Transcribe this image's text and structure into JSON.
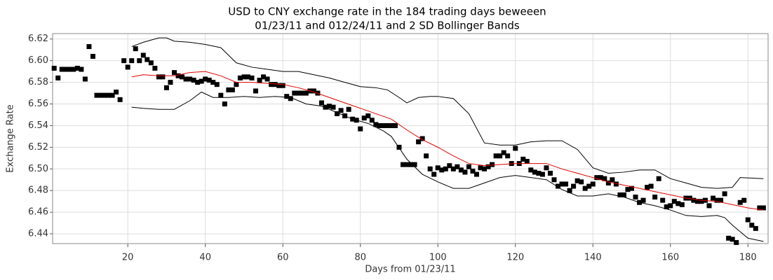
{
  "chart_data": {
    "type": "scatter",
    "title": [
      "USD to CNY exchange rate in the 184 trading days beweeen",
      "01/23/11 and 012/24/11 and 2 SD Bollinger Bands"
    ],
    "x_label": "Days from 01/23/11",
    "y_label": "Exchange Rate",
    "xlim": [
      0.6,
      185.2
    ],
    "ylim": [
      6.431,
      6.625
    ],
    "xticks": [
      20,
      40,
      60,
      80,
      100,
      120,
      140,
      160,
      180
    ],
    "yticks": [
      6.44,
      6.46,
      6.48,
      {
        "value": 6.5,
        "label": "6.50"
      },
      6.52,
      6.54,
      6.56,
      6.58,
      {
        "value": 6.6,
        "label": "6.60"
      },
      6.62
    ],
    "grid": true,
    "x": [
      1,
      2,
      3,
      4,
      5,
      6,
      7,
      8,
      9,
      10,
      11,
      12,
      13,
      14,
      15,
      16,
      17,
      18,
      19,
      20,
      21,
      22,
      23,
      24,
      25,
      26,
      27,
      28,
      29,
      30,
      31,
      32,
      33,
      34,
      35,
      36,
      37,
      38,
      39,
      40,
      41,
      42,
      43,
      44,
      45,
      46,
      47,
      48,
      49,
      50,
      51,
      52,
      53,
      54,
      55,
      56,
      57,
      58,
      59,
      60,
      61,
      62,
      63,
      64,
      65,
      66,
      67,
      68,
      69,
      70,
      71,
      72,
      73,
      74,
      75,
      76,
      77,
      78,
      79,
      80,
      81,
      82,
      83,
      84,
      85,
      86,
      87,
      88,
      89,
      90,
      91,
      92,
      93,
      94,
      95,
      96,
      97,
      98,
      99,
      100,
      101,
      102,
      103,
      104,
      105,
      106,
      107,
      108,
      109,
      110,
      111,
      112,
      113,
      114,
      115,
      116,
      117,
      118,
      119,
      120,
      121,
      122,
      123,
      124,
      125,
      126,
      127,
      128,
      129,
      130,
      131,
      132,
      133,
      134,
      135,
      136,
      137,
      138,
      139,
      140,
      141,
      142,
      143,
      144,
      145,
      146,
      147,
      148,
      149,
      150,
      151,
      152,
      153,
      154,
      155,
      156,
      157,
      158,
      159,
      160,
      161,
      162,
      163,
      164,
      165,
      166,
      167,
      168,
      169,
      170,
      171,
      172,
      173,
      174,
      175,
      176,
      177,
      178,
      179,
      180,
      181,
      182,
      183,
      184
    ],
    "series": [
      {
        "type": "scatter",
        "color": "#000000",
        "values": [
          6.593,
          6.584,
          6.592,
          6.592,
          6.592,
          6.592,
          6.593,
          6.592,
          6.583,
          6.613,
          6.604,
          6.568,
          6.568,
          6.568,
          6.568,
          6.568,
          6.571,
          6.564,
          6.6,
          6.594,
          6.6,
          6.611,
          6.6,
          6.605,
          6.601,
          6.598,
          6.593,
          6.585,
          6.585,
          6.575,
          6.58,
          6.589,
          6.586,
          6.585,
          6.583,
          6.583,
          6.582,
          6.58,
          6.581,
          6.583,
          6.582,
          6.58,
          6.578,
          6.568,
          6.56,
          6.573,
          6.573,
          6.578,
          6.584,
          6.585,
          6.585,
          6.584,
          6.572,
          6.582,
          6.585,
          6.583,
          6.578,
          6.578,
          6.577,
          6.577,
          6.567,
          6.565,
          6.57,
          6.57,
          6.57,
          6.57,
          6.572,
          6.572,
          6.57,
          6.561,
          6.557,
          6.558,
          6.557,
          6.551,
          6.554,
          6.549,
          6.555,
          6.546,
          6.545,
          6.537,
          6.547,
          6.549,
          6.545,
          6.541,
          6.54,
          6.54,
          6.54,
          6.54,
          6.54,
          6.52,
          6.504,
          6.504,
          6.504,
          6.504,
          6.525,
          6.528,
          6.512,
          6.5,
          6.495,
          6.501,
          6.499,
          6.5,
          6.503,
          6.5,
          6.502,
          6.499,
          6.497,
          6.502,
          6.498,
          6.495,
          6.501,
          6.5,
          6.502,
          6.504,
          6.512,
          6.512,
          6.515,
          6.512,
          6.505,
          6.519,
          6.505,
          6.509,
          6.507,
          6.499,
          6.497,
          6.496,
          6.495,
          6.501,
          6.496,
          6.49,
          6.484,
          6.486,
          6.486,
          6.48,
          6.484,
          6.489,
          6.488,
          6.482,
          6.484,
          6.486,
          6.492,
          6.492,
          6.491,
          6.487,
          6.49,
          6.486,
          6.476,
          6.476,
          6.481,
          6.482,
          6.474,
          6.469,
          6.471,
          6.483,
          6.484,
          6.474,
          6.491,
          6.471,
          6.465,
          6.466,
          6.47,
          6.468,
          6.467,
          6.473,
          6.473,
          6.471,
          6.47,
          6.47,
          6.471,
          6.466,
          6.473,
          6.471,
          6.471,
          6.477,
          6.436,
          6.435,
          6.432,
          6.469,
          6.471,
          6.453,
          6.448,
          6.445,
          6.464,
          6.464
        ]
      },
      {
        "type": "line",
        "color": "#000000",
        "x": [
          21,
          24,
          28,
          30,
          32,
          36,
          40,
          44,
          48,
          52,
          56,
          60,
          64,
          68,
          72,
          76,
          80,
          84,
          87,
          90,
          92,
          95,
          98,
          100,
          104,
          108,
          112,
          116,
          120,
          124,
          128,
          132,
          136,
          140,
          144,
          148,
          152,
          156,
          160,
          164,
          168,
          172,
          176,
          178,
          184
        ],
        "values": [
          6.613,
          6.617,
          6.621,
          6.621,
          6.618,
          6.617,
          6.615,
          6.612,
          6.598,
          6.594,
          6.592,
          6.59,
          6.59,
          6.587,
          6.584,
          6.58,
          6.576,
          6.575,
          6.573,
          6.566,
          6.561,
          6.566,
          6.567,
          6.567,
          6.565,
          6.551,
          6.524,
          6.522,
          6.522,
          6.525,
          6.526,
          6.526,
          6.518,
          6.501,
          6.496,
          6.497,
          6.499,
          6.499,
          6.491,
          6.487,
          6.483,
          6.482,
          6.483,
          6.492,
          6.491
        ]
      },
      {
        "type": "line",
        "color": "#e00000",
        "x": [
          21,
          24,
          28,
          32,
          36,
          40,
          44,
          48,
          52,
          56,
          60,
          64,
          68,
          72,
          76,
          80,
          84,
          88,
          92,
          96,
          100,
          104,
          108,
          112,
          116,
          120,
          124,
          128,
          132,
          136,
          140,
          144,
          148,
          152,
          156,
          160,
          164,
          168,
          172,
          176,
          180,
          184
        ],
        "values": [
          6.585,
          6.587,
          6.586,
          6.586,
          6.589,
          6.59,
          6.586,
          6.58,
          6.58,
          6.579,
          6.578,
          6.575,
          6.571,
          6.566,
          6.561,
          6.556,
          6.551,
          6.546,
          6.536,
          6.527,
          6.52,
          6.512,
          6.505,
          6.503,
          6.504,
          6.505,
          6.505,
          6.505,
          6.5,
          6.496,
          6.492,
          6.488,
          6.485,
          6.482,
          6.479,
          6.476,
          6.473,
          6.471,
          6.47,
          6.467,
          6.464,
          6.462
        ]
      },
      {
        "type": "line",
        "color": "#000000",
        "x": [
          21,
          24,
          28,
          32,
          36,
          39,
          42,
          46,
          50,
          54,
          58,
          62,
          66,
          70,
          74,
          78,
          82,
          86,
          88,
          92,
          96,
          100,
          104,
          108,
          112,
          116,
          120,
          124,
          128,
          132,
          136,
          140,
          144,
          148,
          152,
          156,
          160,
          164,
          168,
          172,
          174,
          176,
          180,
          184
        ],
        "values": [
          6.557,
          6.556,
          6.555,
          6.555,
          6.563,
          6.571,
          6.566,
          6.566,
          6.567,
          6.566,
          6.567,
          6.566,
          6.56,
          6.558,
          6.552,
          6.546,
          6.542,
          6.535,
          6.53,
          6.509,
          6.495,
          6.488,
          6.482,
          6.482,
          6.487,
          6.492,
          6.494,
          6.492,
          6.49,
          6.481,
          6.475,
          6.475,
          6.477,
          6.474,
          6.469,
          6.466,
          6.462,
          6.457,
          6.456,
          6.457,
          6.455,
          6.448,
          6.436,
          6.433
        ]
      }
    ]
  }
}
